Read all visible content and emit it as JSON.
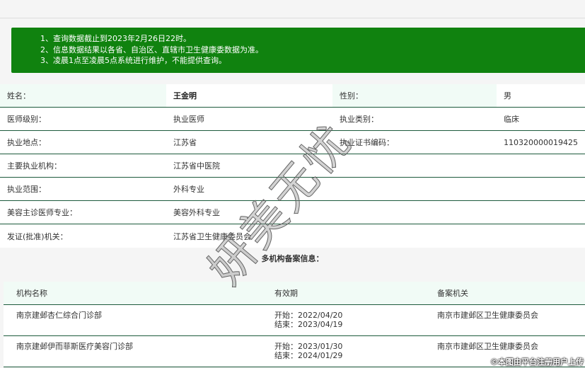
{
  "notice": [
    "1、查询数据截止到2023年2月26日22时。",
    "2、信息数据结果以各省、自治区、直辖市卫生健康委数据为准。",
    "3、凌晨1点至凌晨5点系统进行维护，不能提供查询。"
  ],
  "info": [
    {
      "l1": "姓名：",
      "v1": "王金明",
      "l2": "性别：",
      "v2": "男"
    },
    {
      "l1": "医师级别：",
      "v1": "执业医师",
      "l2": "执业类别：",
      "v2": "临床"
    },
    {
      "l1": "执业地点：",
      "v1": "江苏省",
      "l2": "执业证书编码：",
      "v2": "110320000019425"
    },
    {
      "l1": "主要执业机构：",
      "v1": "江苏省中医院",
      "l2": "",
      "v2": ""
    },
    {
      "l1": "执业范围：",
      "v1": "外科专业",
      "l2": "",
      "v2": ""
    },
    {
      "l1": "美容主诊医师专业：",
      "v1": "美容外科专业",
      "l2": "",
      "v2": ""
    },
    {
      "l1": "发证(批准)机关：",
      "v1": "江苏省卫生健康委员会",
      "l2": "",
      "v2": ""
    }
  ],
  "multi_title": "多机构备案信息：",
  "table": {
    "headers": [
      "机构名称",
      "有效期",
      "备案机关"
    ],
    "rows": [
      {
        "name": "南京建邺杏仁综合门诊部",
        "start": "开始：2022/04/20",
        "end": "结束：2023/04/19",
        "org": "南京市建邺区卫生健康委员会"
      },
      {
        "name": "南京建邺伊而菲斯医疗美容门诊部",
        "start": "开始：2023/01/30",
        "end": "结束：2024/01/29",
        "org": "南京市建邺区卫生健康委员会"
      }
    ]
  },
  "watermark": "妍美无忧",
  "credit": "©本图由平台注册用户上传"
}
